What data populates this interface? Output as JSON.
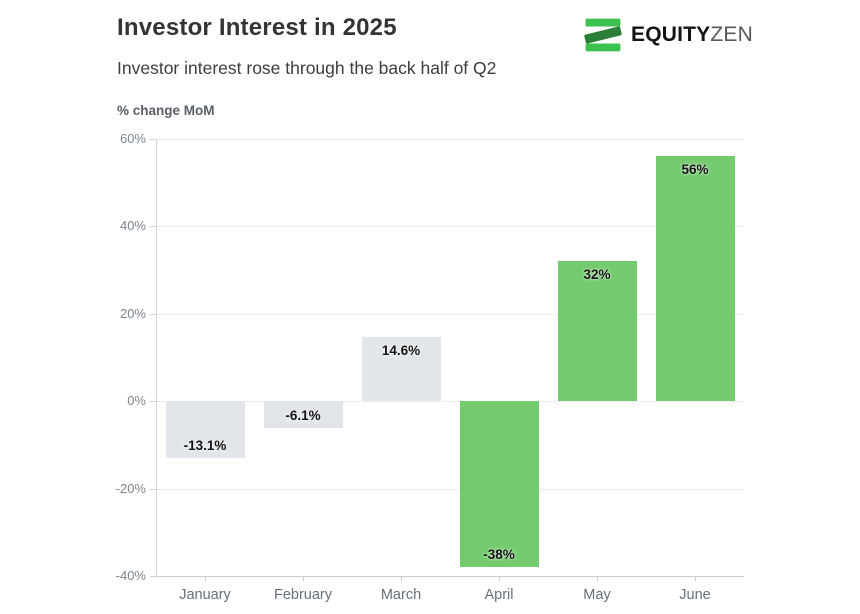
{
  "header": {
    "title": "Investor Interest in 2025",
    "subtitle": "Investor interest rose through the back half of Q2"
  },
  "logo": {
    "brand_bold": "EQUITY",
    "brand_light": "ZEN",
    "icon_green_light": "#3ec24f",
    "icon_green_dark": "#2b7e36"
  },
  "chart_data": {
    "type": "bar",
    "title": "Investor Interest in 2025",
    "subtitle": "Investor interest rose through the back half of Q2",
    "ylabel": "% change MoM",
    "categories": [
      "January",
      "February",
      "March",
      "April",
      "May",
      "June"
    ],
    "values": [
      -13.1,
      -6.1,
      14.6,
      -38,
      32,
      56
    ],
    "bar_labels": [
      "-13.1%",
      "-6.1%",
      "14.6%",
      "-38%",
      "32%",
      "56%"
    ],
    "bar_colors": [
      "#e2e6ea",
      "#e2e6ea",
      "#e2e6ea",
      "#74ca6e",
      "#74ca6e",
      "#74ca6e"
    ],
    "gray_bar_color": "#e2e6ea",
    "green_bar_color": "#74ca6e",
    "ylim": [
      -40,
      60
    ],
    "yticks": [
      "60%",
      "40%",
      "20%",
      "0%",
      "-20%",
      "-40%"
    ],
    "ytick_values": [
      60,
      40,
      20,
      0,
      -20,
      -40
    ],
    "grid": true,
    "legend": false
  }
}
